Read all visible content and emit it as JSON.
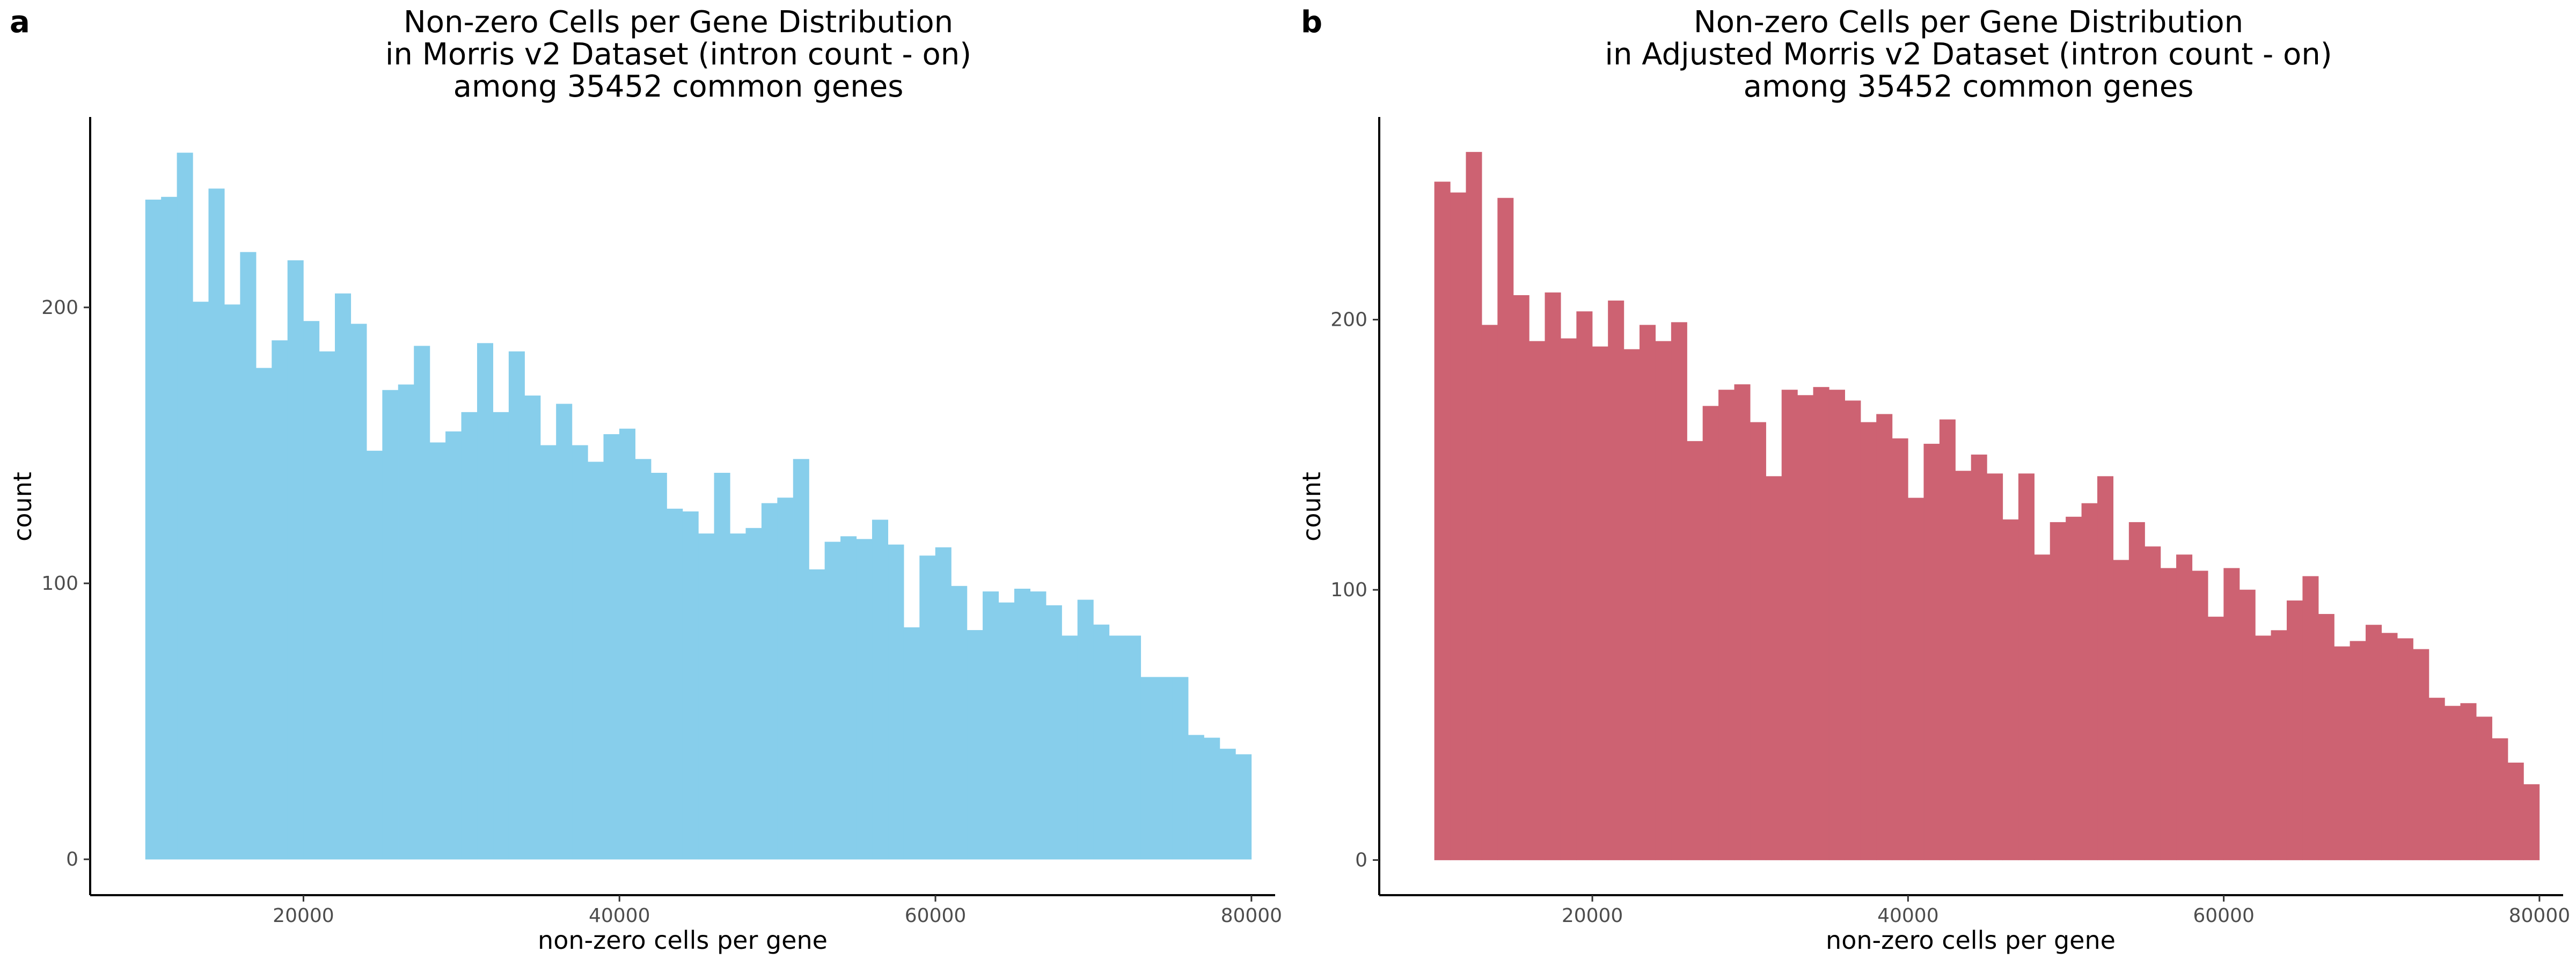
{
  "panels": [
    {
      "letter": "a",
      "title_lines": [
        "Non-zero Cells per Gene Distribution",
        "in Morris v2 Dataset (intron count - on)",
        "among 35452 common genes"
      ],
      "color": "#87CEEB"
    },
    {
      "letter": "b",
      "title_lines": [
        "Non-zero Cells per Gene Distribution",
        "in Adjusted Morris v2 Dataset (intron count - on)",
        "among 35452 common genes"
      ],
      "color": "#CD6272"
    }
  ],
  "chart_data": [
    {
      "type": "bar",
      "title": "Non-zero Cells per Gene Distribution\nin Morris v2 Dataset (intron count - on)\namong 35452 common genes",
      "xlabel": "non-zero cells per gene",
      "ylabel": "count",
      "x_ticks": [
        20000,
        40000,
        60000,
        80000
      ],
      "y_ticks": [
        0,
        100,
        200
      ],
      "xlim": [
        6500,
        81500
      ],
      "ylim": [
        -13,
        269
      ],
      "bin_start": 10000,
      "bin_width": 1000,
      "grid": false,
      "values": [
        239,
        240,
        256,
        202,
        243,
        201,
        220,
        178,
        188,
        217,
        195,
        184,
        205,
        194,
        148,
        170,
        172,
        186,
        151,
        155,
        162,
        187,
        162,
        184,
        168,
        150,
        165,
        150,
        144,
        154,
        156,
        145,
        140,
        127,
        126,
        118,
        140,
        118,
        120,
        129,
        131,
        145,
        105,
        115,
        117,
        116,
        123,
        114,
        84,
        110,
        113,
        99,
        83,
        97,
        93,
        98,
        97,
        92,
        81,
        94,
        85,
        81,
        81,
        66,
        66,
        66,
        45,
        44,
        40,
        38
      ]
    },
    {
      "type": "bar",
      "title": "Non-zero Cells per Gene Distribution\nin Adjusted Morris v2 Dataset (intron count - on)\namong 35452 common genes",
      "xlabel": "non-zero cells per gene",
      "ylabel": "count",
      "x_ticks": [
        20000,
        40000,
        60000,
        80000
      ],
      "y_ticks": [
        0,
        100,
        200
      ],
      "xlim": [
        6500,
        81500
      ],
      "ylim": [
        -13,
        275
      ],
      "bin_start": 10000,
      "bin_width": 1000,
      "grid": false,
      "values": [
        251,
        247,
        262,
        198,
        245,
        209,
        192,
        210,
        193,
        203,
        190,
        207,
        189,
        198,
        192,
        199,
        155,
        168,
        174,
        176,
        162,
        142,
        174,
        172,
        175,
        174,
        170,
        162,
        165,
        156,
        134,
        154,
        163,
        144,
        150,
        143,
        126,
        143,
        113,
        125,
        127,
        132,
        142,
        111,
        125,
        116,
        108,
        113,
        107,
        90,
        108,
        100,
        83,
        85,
        96,
        105,
        91,
        79,
        81,
        87,
        84,
        82,
        78,
        60,
        57,
        58,
        53,
        45,
        36,
        28
      ]
    }
  ]
}
